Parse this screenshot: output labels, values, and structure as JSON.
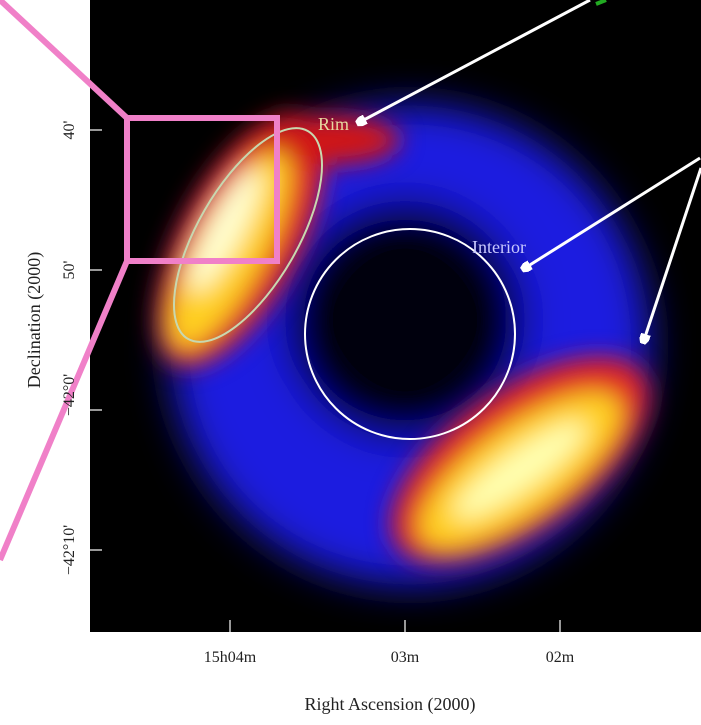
{
  "figure": {
    "annotations": {
      "rim": "Rim",
      "interior": "Interior"
    },
    "x_axis": {
      "label": "Right Ascension (2000)",
      "ticks": [
        "15h04m",
        "03m",
        "02m"
      ]
    },
    "y_axis": {
      "label": "Declination (2000)",
      "ticks": [
        "40'",
        "50'",
        "−42°0'",
        "−42°10'"
      ]
    }
  }
}
